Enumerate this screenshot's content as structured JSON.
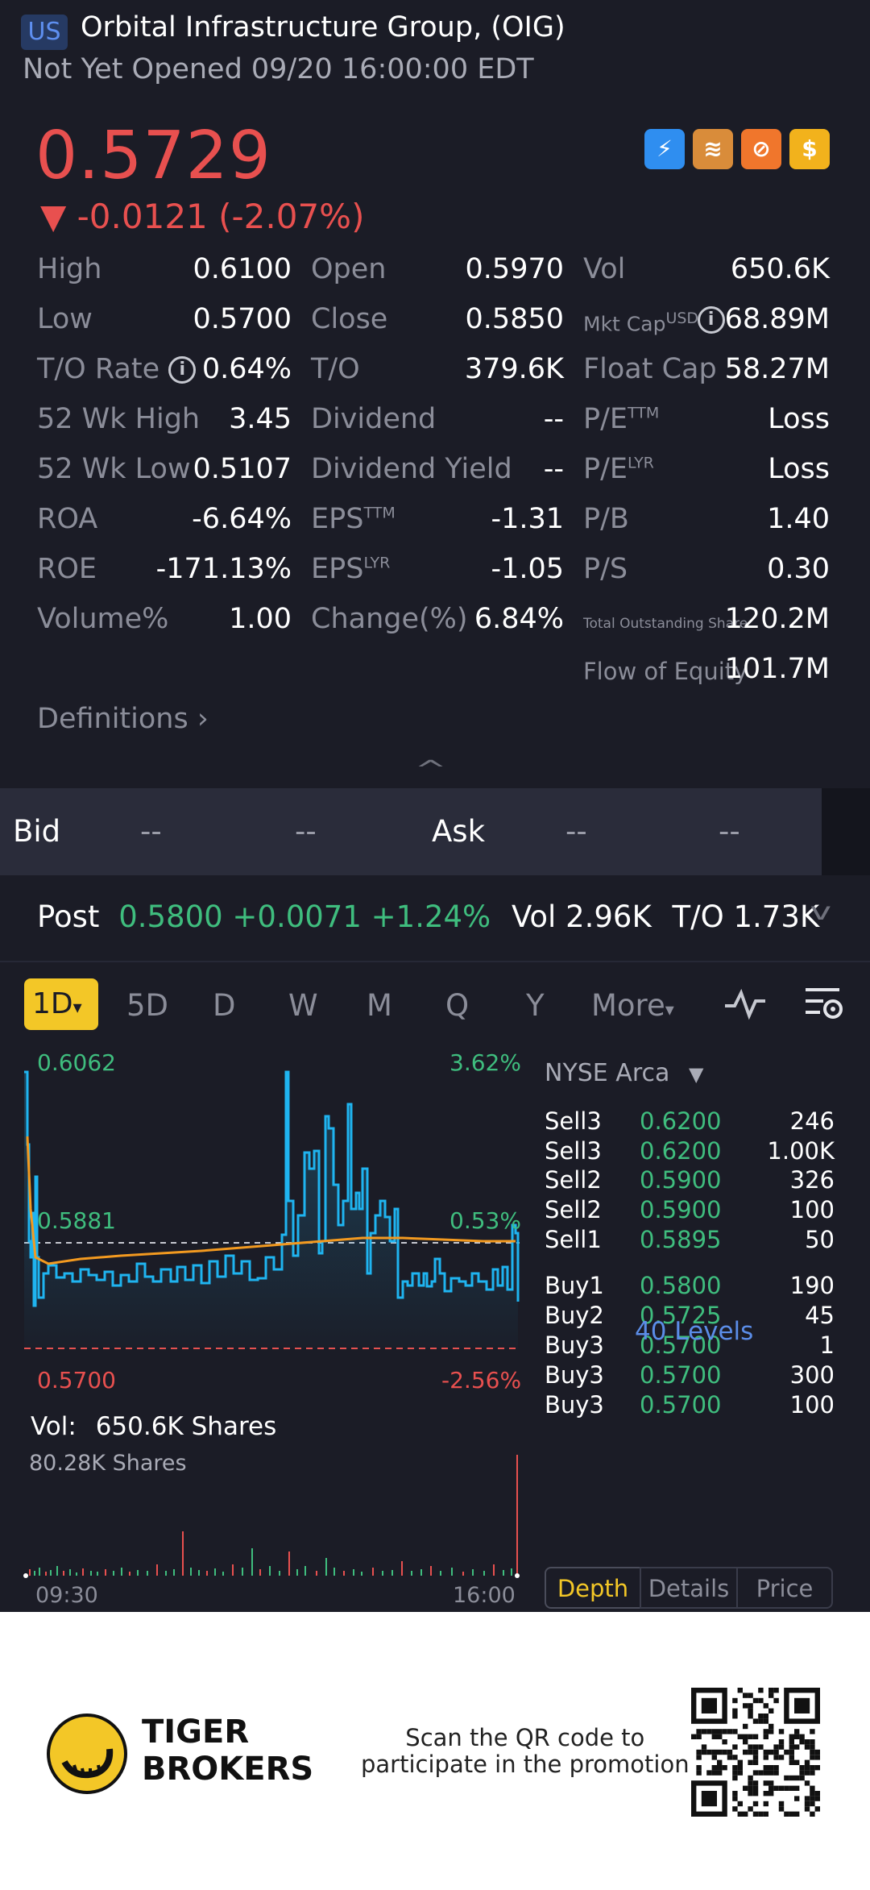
{
  "header": {
    "badge": "US",
    "title": "Orbital Infrastructure Group, (OIG)",
    "status": "Not Yet Opened 09/20 16:00:00 EDT"
  },
  "quote": {
    "price": "0.5729",
    "change": "▼ -0.0121 (-2.07%)"
  },
  "app_icons": [
    "lightning-1-icon",
    "books-a-icon",
    "no-sign-icon",
    "dollar-icon"
  ],
  "stats": {
    "high_label": "High",
    "high": "0.6100",
    "open_label": "Open",
    "open": "0.5970",
    "vol_label": "Vol",
    "vol": "650.6K",
    "low_label": "Low",
    "low": "0.5700",
    "close_label": "Close",
    "close": "0.5850",
    "mktcap_label": "Mkt Cap",
    "mktcap_sup": "USD",
    "mktcap": "68.89M",
    "to_rate_label": "T/O Rate",
    "to_rate": "0.64%",
    "to_label": "T/O",
    "to": "379.6K",
    "float_label": "Float Cap",
    "float": "58.27M",
    "wk52_high_label": "52 Wk High",
    "wk52_high": "3.45",
    "dividend_label": "Dividend",
    "dividend": "--",
    "pe_ttm_label": "P/E",
    "pe_ttm_sup": "TTM",
    "pe_ttm": "Loss",
    "wk52_low_label": "52 Wk Low",
    "wk52_low": "0.5107",
    "div_yield_label": "Dividend Yield",
    "div_yield": "--",
    "pe_lyr_label": "P/E",
    "pe_lyr_sup": "LYR",
    "pe_lyr": "Loss",
    "roa_label": "ROA",
    "roa": "-6.64%",
    "eps_ttm_label": "EPS",
    "eps_ttm_sup": "TTM",
    "eps_ttm": "-1.31",
    "pb_label": "P/B",
    "pb": "1.40",
    "roe_label": "ROE",
    "roe": "-171.13%",
    "eps_lyr_label": "EPS",
    "eps_lyr_sup": "LYR",
    "eps_lyr": "-1.05",
    "ps_label": "P/S",
    "ps": "0.30",
    "volpct_label": "Volume%",
    "volpct": "1.00",
    "changepct_label": "Change(%)",
    "changepct": "6.84%",
    "tos_label": "Total Outstanding Share",
    "tos": "120.2M",
    "foe_label": "Flow of Equity",
    "foe": "101.7M"
  },
  "definitions": "Definitions",
  "bidask": {
    "bid": "Bid",
    "ask": "Ask",
    "dash": "--"
  },
  "post": {
    "label": "Post",
    "price": "0.5800",
    "change": "+0.0071",
    "pct": "+1.24%",
    "vol_label": "Vol",
    "vol": "2.96K",
    "to_label": "T/O",
    "to": "1.73K"
  },
  "tabs": {
    "d1": "1D",
    "d5": "5D",
    "d": "D",
    "w": "W",
    "m": "M",
    "q": "Q",
    "y": "Y",
    "more": "More"
  },
  "chart": {
    "top_price": "0.6062",
    "top_pct": "3.62%",
    "mid_price": "0.5881",
    "mid_pct": "0.53%",
    "low_price": "0.5700",
    "low_pct": "-2.56%",
    "vol_label": "Vol:",
    "vol_value": "650.6K Shares",
    "vol_max": "80.28K Shares",
    "time_start": "09:30",
    "time_end": "16:00",
    "colors": {
      "price": "#1fb4f0",
      "avg": "#f39a20",
      "up": "#3fbd7e",
      "down": "#e8504f"
    }
  },
  "orderbook": {
    "exchange": "NYSE Arca",
    "levels": "40 Levels",
    "rows": [
      {
        "name": "Sell3",
        "price": "0.6200",
        "vol": "246"
      },
      {
        "name": "Sell3",
        "price": "0.6200",
        "vol": "1.00K"
      },
      {
        "name": "Sell2",
        "price": "0.5900",
        "vol": "326"
      },
      {
        "name": "Sell2",
        "price": "0.5900",
        "vol": "100"
      },
      {
        "name": "Sell1",
        "price": "0.5895",
        "vol": "50"
      },
      {
        "name": "Buy1",
        "price": "0.5800",
        "vol": "190"
      },
      {
        "name": "Buy2",
        "price": "0.5725",
        "vol": "45"
      },
      {
        "name": "Buy3",
        "price": "0.5700",
        "vol": "1"
      },
      {
        "name": "Buy3",
        "price": "0.5700",
        "vol": "300"
      },
      {
        "name": "Buy3",
        "price": "0.5700",
        "vol": "100"
      }
    ],
    "tabs": [
      "Depth",
      "Details",
      "Price"
    ]
  },
  "footer": {
    "brand_line1": "TIGER",
    "brand_line2": "BROKERS",
    "promo_line1": "Scan the QR code to",
    "promo_line2": "participate in the promotion"
  }
}
